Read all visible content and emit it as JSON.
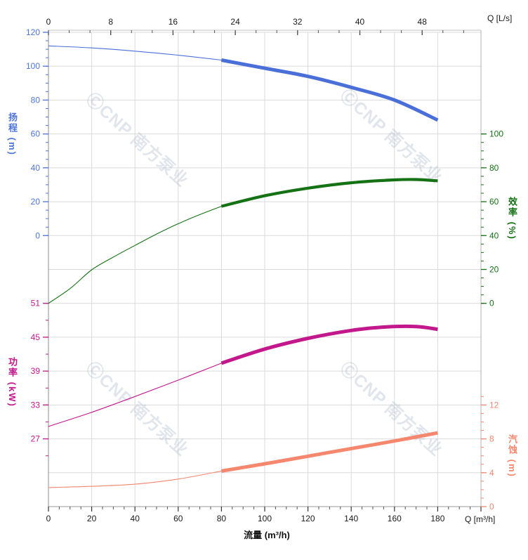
{
  "watermark": {
    "text": "ⒸCNP 南方泵业",
    "color": "rgba(170,180,200,0.35)"
  },
  "axes": {
    "x_top": {
      "unit_label": "Q [L/s]",
      "tick_labels": [
        0,
        8,
        16,
        24,
        32,
        40,
        48
      ],
      "color": "#1a1a1a"
    },
    "x_bottom": {
      "unit_label": "Q [m³/h]",
      "title": "流量 (m³/h)",
      "tick_labels": [
        0,
        20,
        40,
        60,
        80,
        100,
        120,
        140,
        160,
        180
      ],
      "color": "#1a1a1a"
    },
    "y_head": {
      "title": "扬程 (m)",
      "tick_labels": [
        120,
        100,
        80,
        60,
        40,
        20,
        0
      ],
      "color": "#4f74d8"
    },
    "y_eff": {
      "title": "效率 (%)",
      "tick_labels": [
        100,
        80,
        60,
        40,
        20,
        0
      ],
      "color": "#147114"
    },
    "y_power": {
      "title": "功率 (kW)",
      "tick_labels": [
        51,
        45,
        39,
        33,
        27
      ],
      "color": "#c2188c"
    },
    "y_npsh": {
      "title": "汽蚀 (m)",
      "tick_labels": [
        12,
        8,
        4,
        0
      ],
      "color": "#f5876e"
    }
  },
  "chart_data": {
    "type": "line",
    "title": "",
    "xlabel": "流量 (m³/h)",
    "x_top_label": "Q [L/s]",
    "x_range_m3h": [
      0,
      200
    ],
    "grid": true,
    "highlight_range_m3h": [
      80,
      180
    ],
    "series": [
      {
        "name": "扬程",
        "axis": "head",
        "unit": "m",
        "color": "#4a6fd8",
        "x": [
          0,
          20,
          40,
          60,
          80,
          100,
          120,
          140,
          160,
          180
        ],
        "y": [
          112,
          110.8,
          108.9,
          106.5,
          103.6,
          98.8,
          94,
          87.5,
          80,
          68.2
        ]
      },
      {
        "name": "效率",
        "axis": "eff",
        "unit": "%",
        "color": "#147114",
        "x": [
          0,
          10,
          20,
          30,
          40,
          50,
          60,
          70,
          80,
          100,
          120,
          140,
          160,
          170,
          180
        ],
        "y": [
          0,
          8.7,
          19.8,
          27.3,
          34.2,
          40.9,
          47,
          52.4,
          57.3,
          63.5,
          68,
          71.2,
          72.9,
          73.1,
          72.3
        ]
      },
      {
        "name": "功率",
        "axis": "power",
        "unit": "kW",
        "color": "#c2188c",
        "x": [
          0,
          20,
          40,
          60,
          80,
          100,
          120,
          140,
          155,
          170,
          180
        ],
        "y": [
          29.2,
          31.7,
          34.5,
          37.4,
          40.4,
          42.9,
          44.8,
          46.2,
          46.8,
          46.9,
          46.4
        ]
      },
      {
        "name": "汽蚀",
        "axis": "npsh",
        "unit": "m",
        "color": "#f5876e",
        "x": [
          0,
          20,
          40,
          60,
          80,
          100,
          120,
          140,
          160,
          180
        ],
        "y": [
          2.25,
          2.4,
          2.65,
          3.25,
          4.2,
          5.05,
          5.95,
          6.85,
          7.75,
          8.7
        ]
      }
    ],
    "axis_scales": {
      "head": {
        "label_min": 0,
        "label_max": 120,
        "major_step": 20,
        "minor_step": 5
      },
      "eff": {
        "label_min": 0,
        "label_max": 100,
        "major_step": 20,
        "minor_step": 5
      },
      "power": {
        "label_min": 27,
        "label_max": 51,
        "major_step": 6,
        "minor_step": 3
      },
      "npsh": {
        "label_min": 0,
        "label_max": 12,
        "major_step": 4,
        "minor_step": 1
      }
    }
  }
}
